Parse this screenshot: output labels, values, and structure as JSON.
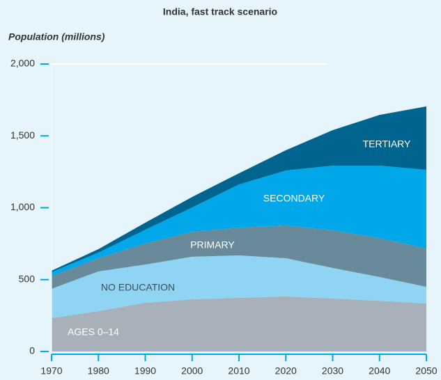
{
  "chart_data": {
    "type": "stacked_area",
    "title": "India, fast track scenario",
    "y_label": "Population (millions)",
    "x": [
      1970,
      1980,
      1990,
      2000,
      2010,
      2020,
      2030,
      2040,
      2050
    ],
    "xlim": [
      1970,
      2050
    ],
    "xticks": [
      1970,
      1980,
      1990,
      2000,
      2010,
      2020,
      2030,
      2040,
      2050
    ],
    "ylim": [
      0,
      2000
    ],
    "yticks": [
      0,
      500,
      {
        "value": 1000,
        "label": "1,000"
      },
      {
        "value": 1500,
        "label": "1,500"
      },
      {
        "value": 2000,
        "label": "2,000"
      }
    ],
    "series": [
      {
        "name": "AGES 0–14",
        "color": "#a8b0ba",
        "values": [
          232,
          281,
          339,
          363,
          373,
          383,
          368,
          353,
          334
        ]
      },
      {
        "name": "NO EDUCATION",
        "color": "#8fd4f3",
        "values": [
          204,
          276,
          266,
          296,
          295,
          266,
          213,
          165,
          116
        ]
      },
      {
        "name": "PRIMARY",
        "color": "#688a9a",
        "values": [
          87,
          92,
          146,
          174,
          194,
          228,
          262,
          271,
          267
        ]
      },
      {
        "name": "SECONDARY",
        "color": "#00a7e9",
        "values": [
          29,
          39,
          96,
          169,
          300,
          382,
          450,
          504,
          547
        ]
      },
      {
        "name": "TERTIARY",
        "color": "#00658e",
        "values": [
          10,
          24,
          49,
          73,
          78,
          141,
          247,
          353,
          441
        ]
      }
    ]
  }
}
